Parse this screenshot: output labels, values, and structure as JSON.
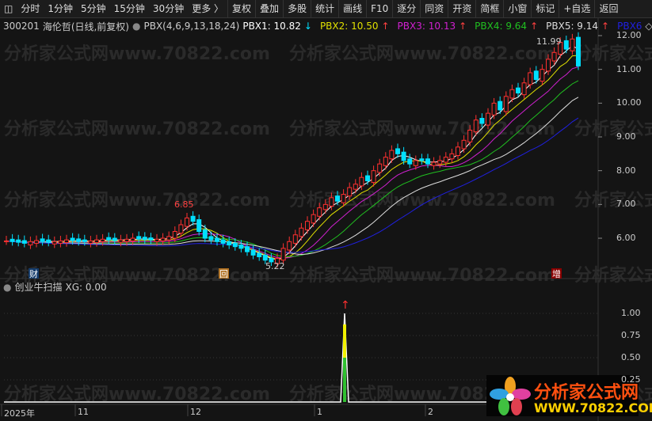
{
  "toolbar": {
    "items": [
      "分时",
      "1分钟",
      "5分钟",
      "15分钟",
      "30分钟",
      "更多 〉",
      "复权",
      "叠加",
      "多股",
      "统计",
      "画线",
      "F10",
      "逐分",
      "同资",
      "开资",
      "简框",
      "小窗",
      "标记",
      "+自选",
      "返回"
    ]
  },
  "info": {
    "code": "300201",
    "name": "海伦哲(日线,前复权)",
    "indicator": "PBX(4,6,9,13,18,24)",
    "pbx": [
      {
        "label": "PBX1: 10.82",
        "color": "#ffffff",
        "arrow": "↓",
        "arrow_color": "#00e0ff"
      },
      {
        "label": "PBX2: 10.50",
        "color": "#e0e000",
        "arrow": "↑",
        "arrow_color": "#ff4040"
      },
      {
        "label": "PBX3: 10.13",
        "color": "#d020d0",
        "arrow": "↑",
        "arrow_color": "#ff4040"
      },
      {
        "label": "PBX4: 9.64",
        "color": "#20c020",
        "arrow": "↑",
        "arrow_color": "#ff4040"
      },
      {
        "label": "PBX5: 9.14",
        "color": "#dddddd",
        "arrow": "↑",
        "arrow_color": "#ff4040"
      },
      {
        "label": "PBX6",
        "color": "#2020e0",
        "arrow": "◇",
        "arrow_color": "#cccccc"
      }
    ]
  },
  "watermark": "分析家公式网www.70822.com",
  "chart_data": [
    {
      "type": "candlestick",
      "yticks": [
        "12.00",
        "11.00",
        "10.00",
        "9.00",
        "8.00",
        "7.00",
        "6.00"
      ],
      "ylim": [
        5.0,
        12.0
      ],
      "closes": [
        5.92,
        5.9,
        5.88,
        5.85,
        5.9,
        5.93,
        5.9,
        5.88,
        5.9,
        5.92,
        5.95,
        5.93,
        5.9,
        5.9,
        5.92,
        5.95,
        5.97,
        5.95,
        5.93,
        5.95,
        5.97,
        6.0,
        5.98,
        5.96,
        5.95,
        5.97,
        6.0,
        6.05,
        6.2,
        6.4,
        6.6,
        6.5,
        6.2,
        6.0,
        5.95,
        5.9,
        5.85,
        5.8,
        5.75,
        5.7,
        5.6,
        5.5,
        5.45,
        5.35,
        5.3,
        5.4,
        5.7,
        5.9,
        6.1,
        6.3,
        6.5,
        6.7,
        6.9,
        7.0,
        7.2,
        7.1,
        7.3,
        7.5,
        7.6,
        7.8,
        7.7,
        8.0,
        8.2,
        8.4,
        8.6,
        8.5,
        8.3,
        8.2,
        8.3,
        8.3,
        8.2,
        8.25,
        8.3,
        8.4,
        8.5,
        8.7,
        8.9,
        9.2,
        9.5,
        9.4,
        9.7,
        10.0,
        9.8,
        10.2,
        10.4,
        10.3,
        10.6,
        10.9,
        10.7,
        11.0,
        11.3,
        11.5,
        11.8,
        11.6,
        11.9,
        11.1
      ],
      "annotations": {
        "high": "6.85",
        "low": "5.22",
        "max": "11.99"
      },
      "markers": [
        "财",
        "回",
        "增"
      ]
    },
    {
      "type": "line",
      "title": "创业牛扫描",
      "value_label": "XG: 0.00",
      "yticks": [
        "1.00",
        "0.75",
        "0.50",
        "0.25"
      ],
      "ylim": [
        0,
        1
      ],
      "spike_index": 57
    }
  ],
  "xaxis": [
    "2025年",
    "11",
    "12",
    "1",
    "2"
  ],
  "logo": {
    "text1": "分析家公式网",
    "text2": "WWW.70822.COM"
  }
}
